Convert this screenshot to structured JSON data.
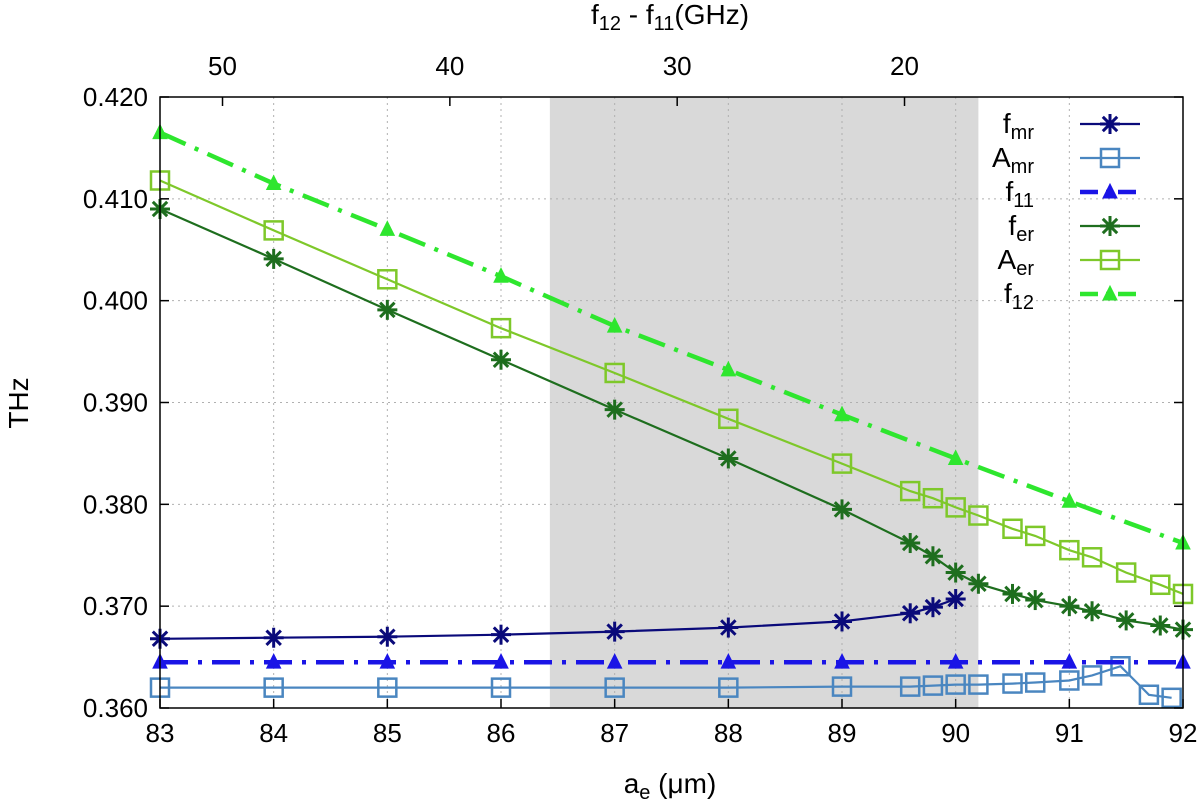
{
  "chart_data": {
    "type": "line",
    "xlabel": "a_e (μm)",
    "xlabel_main": "a",
    "xlabel_sub": "e",
    "xlabel_unit": " (μm)",
    "ylabel": "THz",
    "top_xlabel": "f12 - f11(GHz)",
    "top_xlabel_parts": {
      "f": "f",
      "sub1": "12",
      "mid": " - f",
      "sub2": "11",
      "end": "(GHz)"
    },
    "xlim": [
      83,
      92
    ],
    "ylim": [
      0.36,
      0.42
    ],
    "x_ticks": [
      "83",
      "84",
      "85",
      "86",
      "87",
      "88",
      "89",
      "90",
      "91",
      "92"
    ],
    "y_ticks": [
      "0.360",
      "0.370",
      "0.380",
      "0.390",
      "0.400",
      "0.410",
      "0.420"
    ],
    "top_ticks": [
      {
        "label": "50",
        "x": 83.55
      },
      {
        "label": "40",
        "x": 85.55
      },
      {
        "label": "30",
        "x": 87.55
      },
      {
        "label": "20",
        "x": 89.55
      }
    ],
    "grid": true,
    "legend_position": "top-right",
    "shaded_region": {
      "x": [
        86.43,
        90.2
      ],
      "color": "#d9d9d9"
    },
    "series": [
      {
        "name": "fmr",
        "name_main": "f",
        "name_sub": "mr",
        "color": "#0a0a7a",
        "marker": "star",
        "dash": "solid",
        "x": [
          83,
          84,
          85,
          86,
          87,
          88,
          89,
          89.6,
          89.8,
          90
        ],
        "y": [
          0.3668,
          0.3669,
          0.367,
          0.3672,
          0.3675,
          0.3679,
          0.3685,
          0.3693,
          0.3699,
          0.3707
        ]
      },
      {
        "name": "Amr",
        "name_main": "A",
        "name_sub": "mr",
        "color": "#4a86c0",
        "marker": "square",
        "dash": "solid",
        "x": [
          83,
          84,
          85,
          86,
          87,
          88,
          89,
          89.6,
          89.8,
          90,
          90.2,
          90.5,
          90.7,
          91,
          91.2,
          91.45,
          91.7,
          91.9
        ],
        "y": [
          0.362,
          0.362,
          0.362,
          0.362,
          0.362,
          0.362,
          0.3621,
          0.3621,
          0.3622,
          0.3623,
          0.3623,
          0.3624,
          0.3625,
          0.3627,
          0.3632,
          0.3641,
          0.3613,
          0.361
        ]
      },
      {
        "name": "f11",
        "name_main": "f",
        "name_sub": "11",
        "color": "#1a14e6",
        "marker": "triangle",
        "dash": "dashdot",
        "x": [
          83,
          84,
          85,
          86,
          87,
          88,
          89,
          90,
          91,
          92
        ],
        "y": [
          0.3645,
          0.3645,
          0.3645,
          0.3645,
          0.3645,
          0.3645,
          0.3645,
          0.3645,
          0.3645,
          0.3645
        ]
      },
      {
        "name": "fer",
        "name_main": "f",
        "name_sub": "er",
        "color": "#1e6e1e",
        "marker": "star",
        "dash": "solid",
        "x": [
          83,
          84,
          85,
          86,
          87,
          88,
          89,
          89.6,
          89.8,
          90,
          90.2,
          90.5,
          90.7,
          91,
          91.2,
          91.5,
          91.8,
          92
        ],
        "y": [
          0.409,
          0.4041,
          0.3991,
          0.3942,
          0.3893,
          0.3845,
          0.3795,
          0.3762,
          0.3749,
          0.3733,
          0.3722,
          0.3712,
          0.3706,
          0.37,
          0.3695,
          0.3686,
          0.3681,
          0.3677
        ]
      },
      {
        "name": "Aer",
        "name_main": "A",
        "name_sub": "er",
        "color": "#7ec82a",
        "marker": "square",
        "dash": "solid",
        "x": [
          83,
          84,
          85,
          86,
          87,
          88,
          89,
          89.6,
          89.8,
          90,
          90.2,
          90.5,
          90.7,
          91,
          91.2,
          91.5,
          91.8,
          92
        ],
        "y": [
          0.4118,
          0.4069,
          0.4021,
          0.3973,
          0.3929,
          0.3884,
          0.384,
          0.3813,
          0.3806,
          0.3797,
          0.3789,
          0.3776,
          0.3769,
          0.3755,
          0.3748,
          0.3733,
          0.3721,
          0.3712
        ]
      },
      {
        "name": "f12",
        "name_main": "f",
        "name_sub": "12",
        "color": "#2ee62e",
        "marker": "triangle",
        "dash": "dashdot",
        "x": [
          83,
          84,
          85,
          86,
          87,
          88,
          89,
          90,
          91,
          92
        ],
        "y": [
          0.4165,
          0.4115,
          0.407,
          0.4024,
          0.3975,
          0.3932,
          0.3888,
          0.3845,
          0.3803,
          0.3762
        ]
      }
    ]
  }
}
